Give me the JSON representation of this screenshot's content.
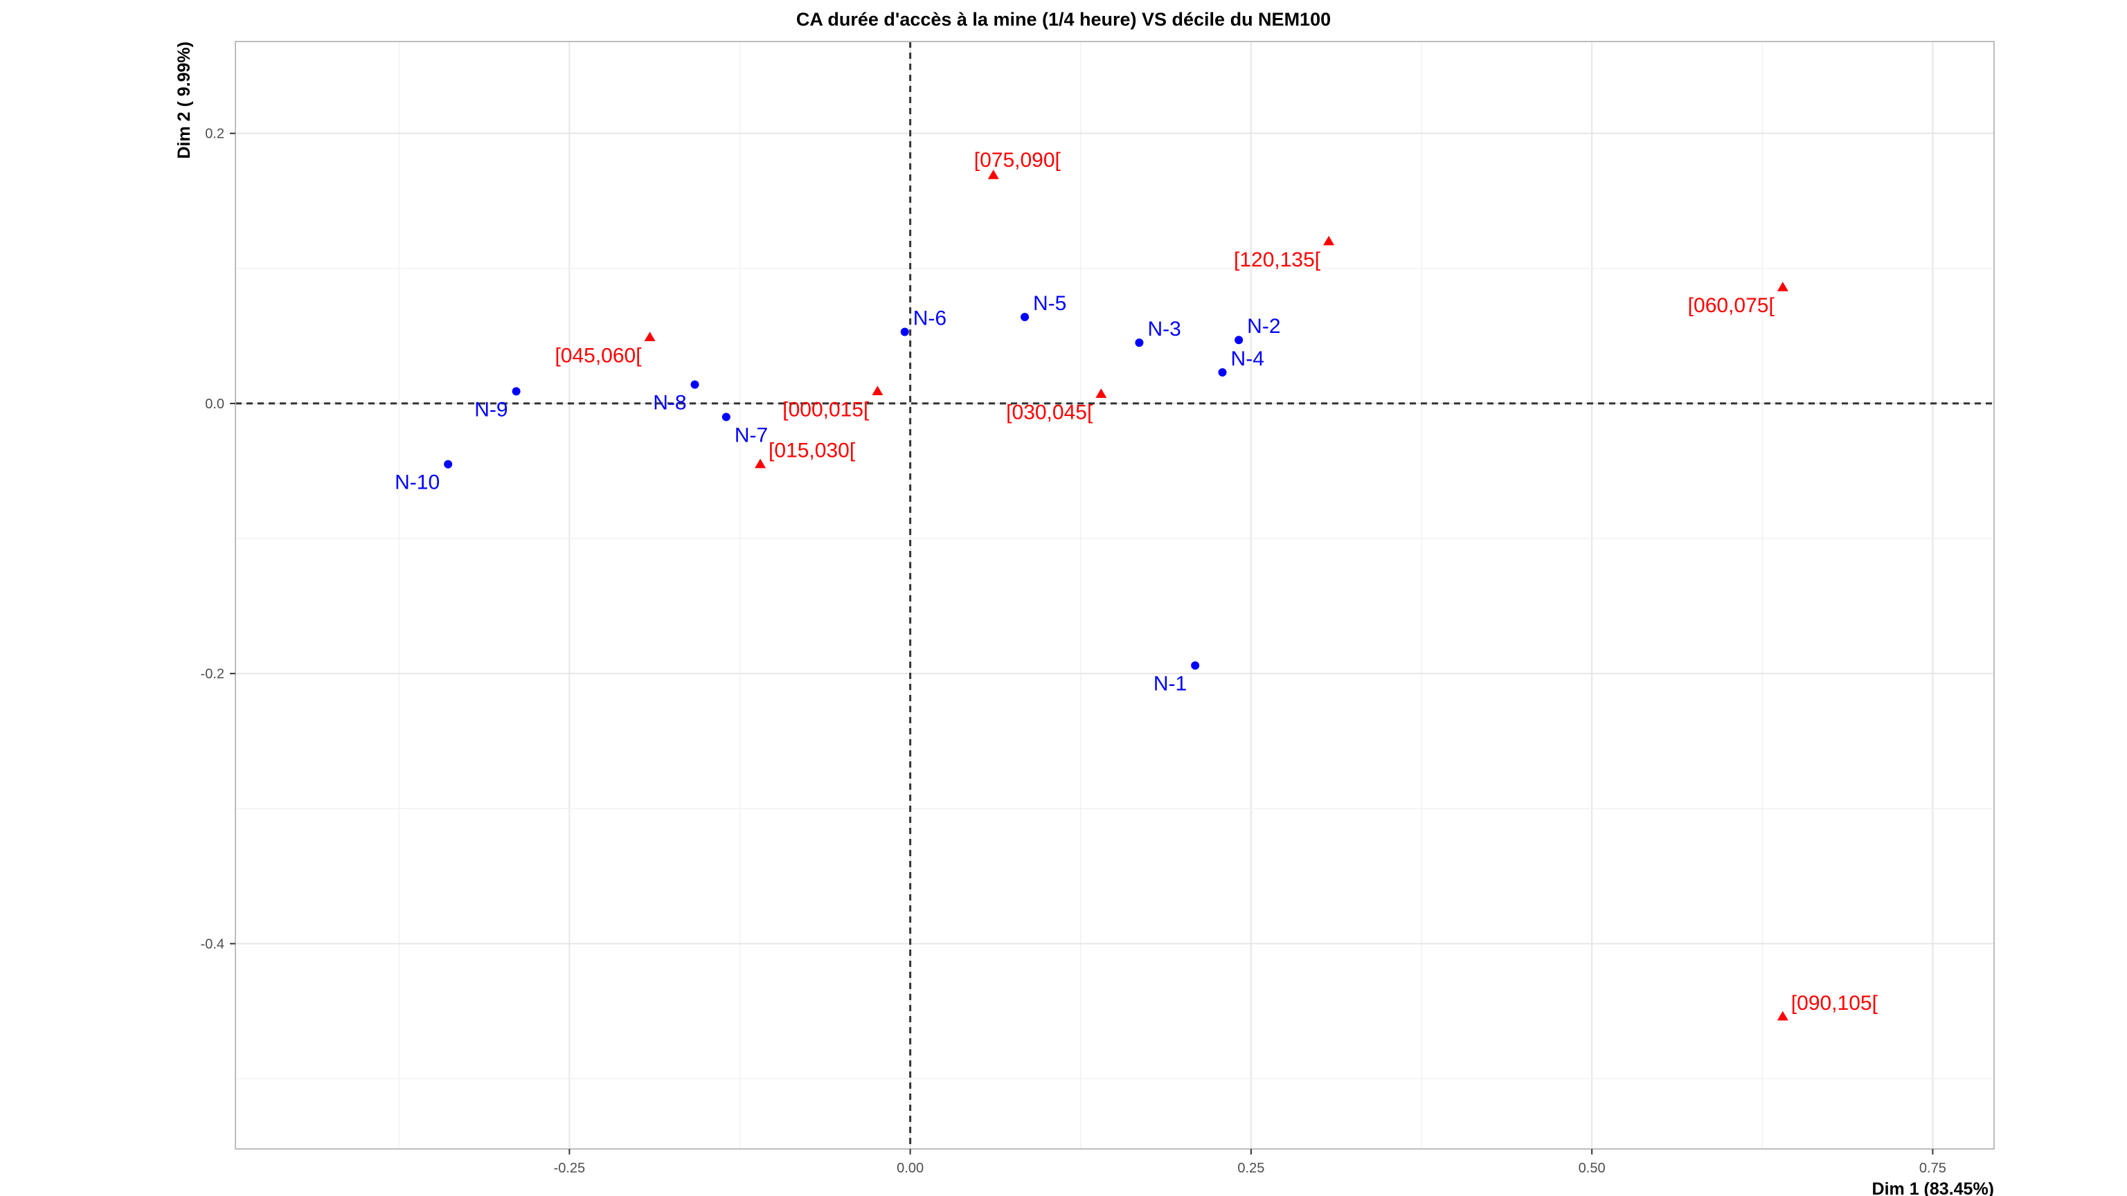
{
  "chart_data": {
    "type": "scatter",
    "title": "CA durée d'accès à la mine (1/4 heure) VS décile du NEM100",
    "xlabel": "Dim 1 (83.45%)",
    "ylabel": "Dim 2 ( 9.99%)",
    "xlim": [
      -0.495,
      0.795
    ],
    "ylim": [
      -0.552,
      0.268
    ],
    "x_ticks": [
      {
        "value": -0.25,
        "label": "-0.25"
      },
      {
        "value": 0.0,
        "label": "0.00"
      },
      {
        "value": 0.25,
        "label": "0.25"
      },
      {
        "value": 0.5,
        "label": "0.50"
      },
      {
        "value": 0.75,
        "label": "0.75"
      }
    ],
    "y_ticks": [
      {
        "value": 0.2,
        "label": "0.2"
      },
      {
        "value": 0.0,
        "label": "0.0"
      },
      {
        "value": -0.2,
        "label": "-0.2"
      },
      {
        "value": -0.4,
        "label": "-0.4"
      }
    ],
    "grid": true,
    "reference_lines": {
      "x": 0,
      "y": 0,
      "style": "dashed"
    },
    "series": [
      {
        "color": "#0000ff",
        "marker": "circle",
        "points": [
          {
            "label": "N-1",
            "x": 0.209,
            "y": -0.194,
            "pos": "bl"
          },
          {
            "label": "N-2",
            "x": 0.241,
            "y": 0.047,
            "pos": "tr"
          },
          {
            "label": "N-3",
            "x": 0.168,
            "y": 0.045,
            "pos": "tr"
          },
          {
            "label": "N-4",
            "x": 0.229,
            "y": 0.023,
            "pos": "tr"
          },
          {
            "label": "N-5",
            "x": 0.084,
            "y": 0.064,
            "pos": "tr"
          },
          {
            "label": "N-6",
            "x": -0.004,
            "y": 0.053,
            "pos": "tr"
          },
          {
            "label": "N-7",
            "x": -0.135,
            "y": -0.01,
            "pos": "br"
          },
          {
            "label": "N-8",
            "x": -0.158,
            "y": 0.014,
            "pos": "bl"
          },
          {
            "label": "N-9",
            "x": -0.289,
            "y": 0.009,
            "pos": "bl"
          },
          {
            "label": "N-10",
            "x": -0.339,
            "y": -0.045,
            "pos": "bl"
          }
        ]
      },
      {
        "color": "#ff0000",
        "marker": "triangle",
        "points": [
          {
            "label": "[000,015[",
            "x": -0.024,
            "y": 0.009,
            "pos": "bl"
          },
          {
            "label": "[015,030[",
            "x": -0.11,
            "y": -0.045,
            "pos": "tr"
          },
          {
            "label": "[030,045[",
            "x": 0.14,
            "y": 0.007,
            "pos": "bl"
          },
          {
            "label": "[045,060[",
            "x": -0.191,
            "y": 0.049,
            "pos": "bl"
          },
          {
            "label": "[060,075[",
            "x": 0.64,
            "y": 0.086,
            "pos": "bl"
          },
          {
            "label": "[075,090[",
            "x": 0.061,
            "y": 0.169,
            "pos": "tl"
          },
          {
            "label": "[090,105[",
            "x": 0.64,
            "y": -0.454,
            "pos": "tr"
          },
          {
            "label": "[120,135[",
            "x": 0.307,
            "y": 0.12,
            "pos": "bl"
          }
        ]
      }
    ]
  }
}
